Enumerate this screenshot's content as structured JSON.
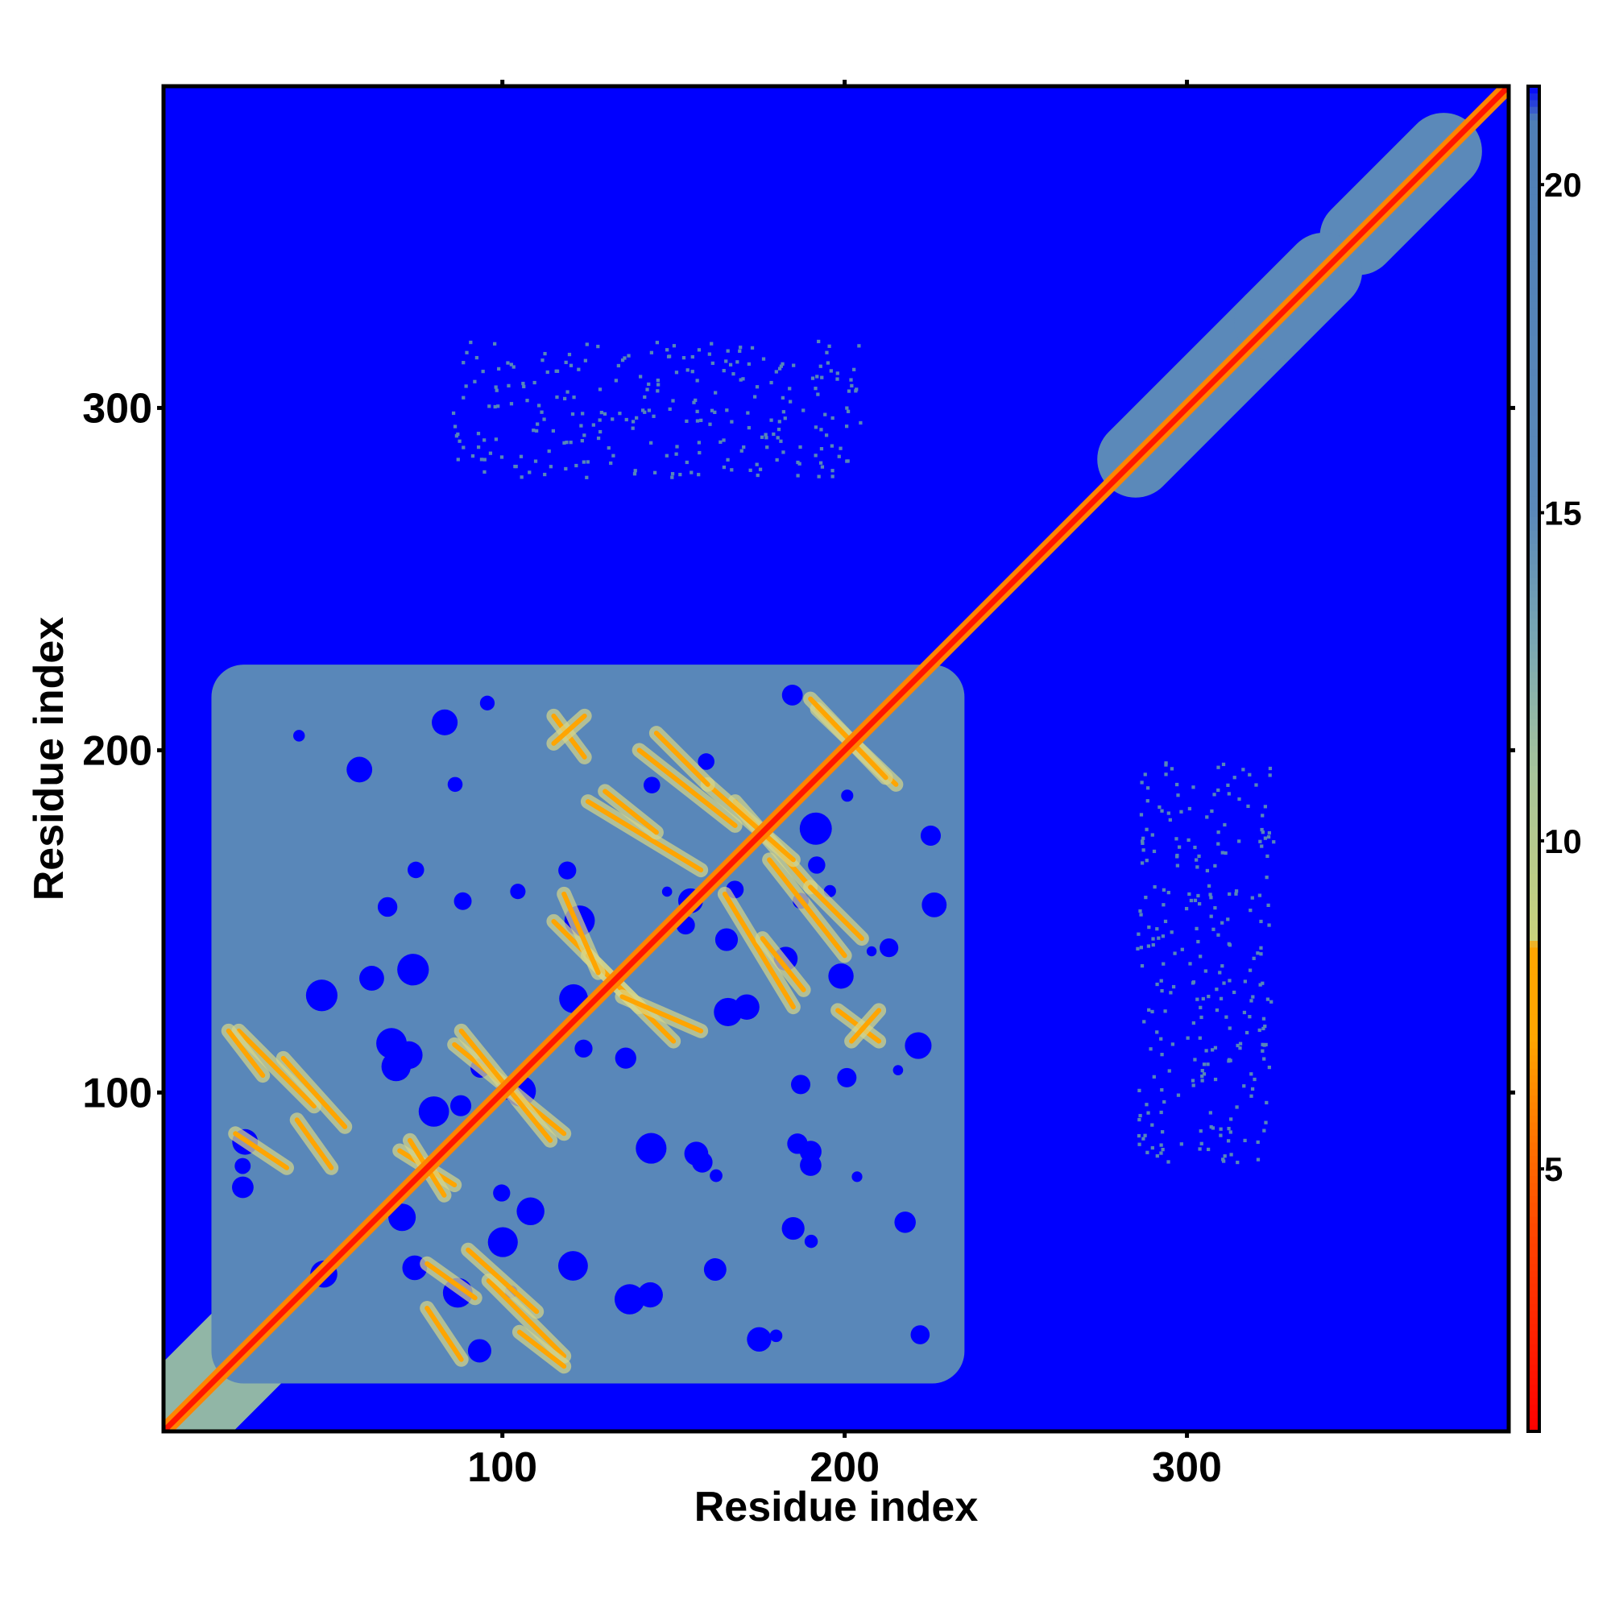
{
  "chart_data": {
    "type": "heatmap",
    "title": "",
    "xlabel": "Residue index",
    "ylabel": "Residue index",
    "xlim": [
      1,
      394
    ],
    "ylim": [
      1,
      394
    ],
    "x_ticks": [
      100,
      200,
      300
    ],
    "y_ticks": [
      100,
      200,
      300
    ],
    "colorbar": {
      "ticks": [
        5,
        10,
        15,
        20
      ],
      "range": [
        1,
        21.5
      ],
      "colors": [
        {
          "value": 1,
          "color": "#ff0000"
        },
        {
          "value": 4,
          "color": "#ff4500"
        },
        {
          "value": 7,
          "color": "#ffa500"
        },
        {
          "value": 8.4,
          "color": "#ffa500"
        },
        {
          "value": 8.5,
          "color": "#c8d27c"
        },
        {
          "value": 11,
          "color": "#a8c49a"
        },
        {
          "value": 13,
          "color": "#7aa8b2"
        },
        {
          "value": 15,
          "color": "#5b89b9"
        },
        {
          "value": 21,
          "color": "#4f7fb6"
        },
        {
          "value": 21.5,
          "color": "#0000ff"
        }
      ]
    },
    "background_value": 21.5,
    "background_color": "#0000ff",
    "regions": [
      {
        "kind": "diagonal",
        "from": 1,
        "to": 394,
        "value": 2
      },
      {
        "kind": "diagonal_band",
        "from": 1,
        "to": 210,
        "value": 12
      },
      {
        "kind": "block",
        "x": [
          15,
          235
        ],
        "y": [
          15,
          225
        ],
        "value": 16
      },
      {
        "kind": "diagonal_band",
        "from": 285,
        "to": 325,
        "value": 15
      },
      {
        "kind": "diagonal_band",
        "from": 350,
        "to": 375,
        "value": 15
      },
      {
        "kind": "diagonal_band",
        "from": 325,
        "to": 340,
        "value": 15
      },
      {
        "kind": "sparse",
        "x": [
          85,
          205
        ],
        "y": [
          280,
          320
        ],
        "value": 17
      },
      {
        "kind": "sparse",
        "x": [
          285,
          325
        ],
        "y": [
          80,
          200
        ],
        "value": 17
      }
    ],
    "contact_lines": [
      {
        "x": [
          23,
          45
        ],
        "y": [
          118,
          96
        ]
      },
      {
        "x": [
          22,
          37
        ],
        "y": [
          88,
          78
        ]
      },
      {
        "x": [
          86,
          118
        ],
        "y": [
          114,
          88
        ]
      },
      {
        "x": [
          70,
          86
        ],
        "y": [
          83,
          73
        ]
      },
      {
        "x": [
          78,
          92
        ],
        "y": [
          50,
          40
        ]
      },
      {
        "x": [
          90,
          110
        ],
        "y": [
          54,
          36
        ]
      },
      {
        "x": [
          105,
          118
        ],
        "y": [
          30,
          20
        ]
      },
      {
        "x": [
          115,
          140
        ],
        "y": [
          150,
          125
        ]
      },
      {
        "x": [
          135,
          158
        ],
        "y": [
          128,
          118
        ]
      },
      {
        "x": [
          125,
          158
        ],
        "y": [
          185,
          165
        ]
      },
      {
        "x": [
          140,
          168
        ],
        "y": [
          200,
          178
        ]
      },
      {
        "x": [
          168,
          190
        ],
        "y": [
          185,
          160
        ]
      },
      {
        "x": [
          176,
          188
        ],
        "y": [
          145,
          130
        ]
      },
      {
        "x": [
          192,
          215
        ],
        "y": [
          212,
          190
        ]
      },
      {
        "x": [
          190,
          205
        ],
        "y": [
          160,
          145
        ]
      },
      {
        "x": [
          198,
          210
        ],
        "y": [
          124,
          115
        ]
      },
      {
        "x": [
          115,
          124
        ],
        "y": [
          202,
          210
        ]
      }
    ]
  }
}
